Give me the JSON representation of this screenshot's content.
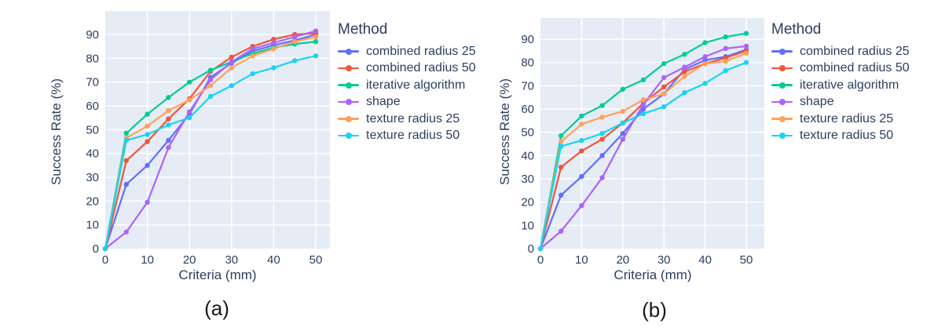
{
  "colors": {
    "plot_background": "#e5ecf6",
    "gridline": "#ffffff",
    "axis_text": "#2a3f5f",
    "caption_text": "#1a1a1a"
  },
  "chart_data": [
    {
      "id": "a",
      "type": "line",
      "caption": "(a)",
      "xlabel": "Criteria (mm)",
      "ylabel": "Success Rate (%)",
      "legend_title": "Method",
      "legend_position": "right",
      "grid": true,
      "xlim": [
        0,
        53.5
      ],
      "ylim": [
        0,
        100
      ],
      "xticks": [
        0,
        10,
        20,
        30,
        40,
        50
      ],
      "yticks": [
        0,
        10,
        20,
        30,
        40,
        50,
        60,
        70,
        80,
        90
      ],
      "x": [
        0,
        5,
        10,
        15,
        20,
        25,
        30,
        35,
        40,
        45,
        50
      ],
      "series": [
        {
          "name": "combined radius 25",
          "color": "#636efa",
          "values": [
            0,
            27,
            35,
            45.5,
            56.5,
            72,
            78,
            83,
            85.5,
            87.5,
            90
          ]
        },
        {
          "name": "combined radius 50",
          "color": "#ef553b",
          "values": [
            0,
            37,
            45,
            54.5,
            63,
            74.5,
            80.5,
            85,
            88,
            90,
            90.5
          ]
        },
        {
          "name": "iterative algorithm",
          "color": "#00cc96",
          "values": [
            0,
            48.5,
            56.5,
            63.5,
            70,
            75,
            78.5,
            82,
            84.5,
            86,
            87
          ]
        },
        {
          "name": "shape",
          "color": "#ab63fa",
          "values": [
            0,
            7,
            19.5,
            42.5,
            57.5,
            71,
            78.5,
            84,
            86.5,
            89,
            91.5
          ]
        },
        {
          "name": "texture radius 25",
          "color": "#ffa15a",
          "values": [
            0,
            46.5,
            51.5,
            58,
            62.5,
            68.5,
            76,
            81,
            84,
            87,
            89
          ]
        },
        {
          "name": "texture radius 50",
          "color": "#19d3f3",
          "values": [
            0,
            45.5,
            48,
            52,
            55,
            64,
            68.5,
            73.5,
            76,
            79,
            81
          ]
        }
      ]
    },
    {
      "id": "b",
      "type": "line",
      "caption": "(b)",
      "xlabel": "Criteria (mm)",
      "ylabel": "Success Rate (%)",
      "legend_title": "Method",
      "legend_position": "right",
      "grid": true,
      "xlim": [
        0,
        54.5
      ],
      "ylim": [
        0,
        99
      ],
      "xticks": [
        0,
        10,
        20,
        30,
        40,
        50
      ],
      "yticks": [
        0,
        10,
        20,
        30,
        40,
        50,
        60,
        70,
        80,
        90
      ],
      "x": [
        0,
        5,
        10,
        15,
        20,
        25,
        30,
        35,
        40,
        45,
        50
      ],
      "series": [
        {
          "name": "combined radius 25",
          "color": "#636efa",
          "values": [
            0,
            23,
            31,
            40,
            49.5,
            60,
            66.5,
            77,
            81,
            82.5,
            85.5
          ]
        },
        {
          "name": "combined radius 50",
          "color": "#ef553b",
          "values": [
            0,
            35,
            42,
            47,
            54,
            62.5,
            69.5,
            76,
            79.5,
            82,
            85
          ]
        },
        {
          "name": "iterative algorithm",
          "color": "#00cc96",
          "values": [
            0,
            48.5,
            57,
            61.5,
            68.5,
            72.5,
            79.5,
            83.5,
            88.5,
            91,
            92.5
          ]
        },
        {
          "name": "shape",
          "color": "#ab63fa",
          "values": [
            0,
            7.5,
            18.5,
            30.5,
            47,
            62,
            73.5,
            78,
            82.5,
            86,
            87
          ]
        },
        {
          "name": "texture radius 25",
          "color": "#ffa15a",
          "values": [
            0,
            46,
            53.5,
            56.5,
            59,
            64,
            66.5,
            74,
            79.5,
            80.5,
            84
          ]
        },
        {
          "name": "texture radius 50",
          "color": "#19d3f3",
          "values": [
            0,
            44,
            46.5,
            49.5,
            54,
            58,
            61,
            67,
            71,
            76.5,
            80
          ]
        }
      ]
    }
  ]
}
